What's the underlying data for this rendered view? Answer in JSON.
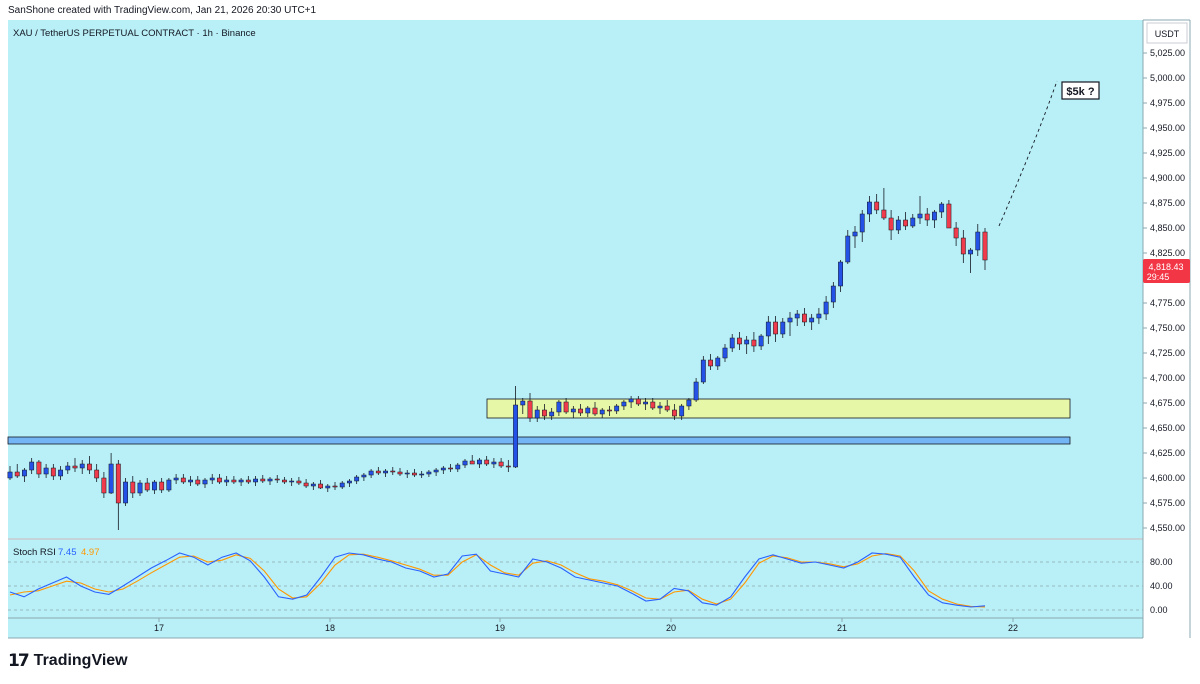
{
  "header": {
    "attribution": "SanShone created with TradingView.com, Jan 21, 2026 20:30 UTC+1"
  },
  "symbol": {
    "title": "XAU / TetherUS PERPETUAL CONTRACT · 1h · Binance"
  },
  "currency": "USDT",
  "last_price": {
    "value": "4,818.43",
    "countdown": "29:45",
    "color": "#f23645"
  },
  "annotation": {
    "label": "$5k ?"
  },
  "indicator": {
    "name": "Stoch RSI",
    "k_value": "7.45",
    "d_value": "4.97",
    "k_color": "#2962ff",
    "d_color": "#ff9800",
    "levels": [
      "80.00",
      "40.00",
      "0.00"
    ]
  },
  "footer": {
    "brand": "TradingView",
    "brand_mark": "17"
  },
  "colors": {
    "background": "#b9f0f7",
    "up": "#2451e6",
    "down": "#ef3b4b",
    "support_zone": "#74b5f5",
    "consolidation_zone": "#e6f7a8"
  },
  "chart_data": {
    "type": "candlestick",
    "price_axis": {
      "ylim": [
        4540,
        5045
      ],
      "ticks": [
        "5,025.00",
        "5,000.00",
        "4,975.00",
        "4,950.00",
        "4,925.00",
        "4,900.00",
        "4,875.00",
        "4,850.00",
        "4,825.00",
        "4,800.00",
        "4,775.00",
        "4,750.00",
        "4,725.00",
        "4,700.00",
        "4,675.00",
        "4,650.00",
        "4,625.00",
        "4,600.00",
        "4,575.00",
        "4,550.00"
      ]
    },
    "time_axis": {
      "ticks": [
        "17",
        "18",
        "19",
        "20",
        "21",
        "22"
      ],
      "bars_per_day": 24
    },
    "zones": [
      {
        "name": "support",
        "low": 4634,
        "high": 4641
      },
      {
        "name": "consolidation",
        "low": 4660,
        "high": 4679
      }
    ],
    "projection": {
      "from_price": 4852,
      "to_price": 4997
    },
    "ohlc": [
      [
        4600,
        4612,
        4598,
        4606
      ],
      [
        4606,
        4614,
        4600,
        4602
      ],
      [
        4602,
        4610,
        4596,
        4608
      ],
      [
        4608,
        4620,
        4604,
        4616
      ],
      [
        4616,
        4618,
        4600,
        4604
      ],
      [
        4604,
        4614,
        4600,
        4610
      ],
      [
        4610,
        4614,
        4598,
        4602
      ],
      [
        4602,
        4612,
        4598,
        4608
      ],
      [
        4608,
        4616,
        4604,
        4612
      ],
      [
        4612,
        4620,
        4606,
        4610
      ],
      [
        4610,
        4618,
        4604,
        4614
      ],
      [
        4614,
        4622,
        4604,
        4608
      ],
      [
        4608,
        4614,
        4596,
        4600
      ],
      [
        4600,
        4606,
        4580,
        4585
      ],
      [
        4585,
        4625,
        4584,
        4614
      ],
      [
        4614,
        4618,
        4548,
        4575
      ],
      [
        4575,
        4600,
        4572,
        4596
      ],
      [
        4596,
        4602,
        4580,
        4585
      ],
      [
        4585,
        4598,
        4582,
        4595
      ],
      [
        4595,
        4600,
        4586,
        4588
      ],
      [
        4588,
        4598,
        4584,
        4596
      ],
      [
        4596,
        4600,
        4585,
        4588
      ],
      [
        4588,
        4600,
        4586,
        4598
      ],
      [
        4598,
        4604,
        4594,
        4600
      ],
      [
        4600,
        4604,
        4594,
        4596
      ],
      [
        4596,
        4602,
        4592,
        4598
      ],
      [
        4598,
        4602,
        4592,
        4594
      ],
      [
        4594,
        4600,
        4590,
        4598
      ],
      [
        4598,
        4604,
        4594,
        4600
      ],
      [
        4600,
        4604,
        4594,
        4596
      ],
      [
        4596,
        4602,
        4592,
        4598
      ],
      [
        4598,
        4602,
        4594,
        4596
      ],
      [
        4596,
        4600,
        4592,
        4598
      ],
      [
        4598,
        4602,
        4594,
        4596
      ],
      [
        4596,
        4602,
        4592,
        4599
      ],
      [
        4599,
        4603,
        4595,
        4597
      ],
      [
        4597,
        4601,
        4593,
        4599
      ],
      [
        4599,
        4603,
        4595,
        4598
      ],
      [
        4598,
        4601,
        4594,
        4596
      ],
      [
        4596,
        4600,
        4592,
        4597
      ],
      [
        4597,
        4601,
        4593,
        4595
      ],
      [
        4595,
        4599,
        4590,
        4592
      ],
      [
        4592,
        4596,
        4588,
        4594
      ],
      [
        4594,
        4598,
        4589,
        4590
      ],
      [
        4590,
        4594,
        4586,
        4592
      ],
      [
        4592,
        4596,
        4588,
        4591
      ],
      [
        4591,
        4597,
        4589,
        4595
      ],
      [
        4595,
        4599,
        4591,
        4597
      ],
      [
        4597,
        4603,
        4594,
        4601
      ],
      [
        4601,
        4605,
        4597,
        4603
      ],
      [
        4603,
        4609,
        4600,
        4607
      ],
      [
        4607,
        4611,
        4603,
        4605
      ],
      [
        4605,
        4609,
        4601,
        4607
      ],
      [
        4607,
        4611,
        4603,
        4606
      ],
      [
        4606,
        4610,
        4602,
        4604
      ],
      [
        4604,
        4608,
        4600,
        4605
      ],
      [
        4605,
        4609,
        4601,
        4603
      ],
      [
        4603,
        4607,
        4600,
        4604
      ],
      [
        4604,
        4608,
        4601,
        4606
      ],
      [
        4606,
        4610,
        4602,
        4608
      ],
      [
        4608,
        4612,
        4604,
        4610
      ],
      [
        4610,
        4614,
        4606,
        4609
      ],
      [
        4609,
        4615,
        4606,
        4613
      ],
      [
        4613,
        4619,
        4610,
        4617
      ],
      [
        4617,
        4623,
        4614,
        4614
      ],
      [
        4614,
        4620,
        4610,
        4618
      ],
      [
        4618,
        4622,
        4612,
        4614
      ],
      [
        4614,
        4620,
        4610,
        4616
      ],
      [
        4616,
        4620,
        4610,
        4612
      ],
      [
        4612,
        4618,
        4606,
        4611
      ],
      [
        4611,
        4692,
        4610,
        4673
      ],
      [
        4673,
        4680,
        4664,
        4677
      ],
      [
        4677,
        4685,
        4656,
        4660
      ],
      [
        4660,
        4672,
        4656,
        4668
      ],
      [
        4668,
        4674,
        4658,
        4662
      ],
      [
        4662,
        4670,
        4658,
        4666
      ],
      [
        4666,
        4678,
        4662,
        4676
      ],
      [
        4676,
        4680,
        4664,
        4666
      ],
      [
        4666,
        4672,
        4660,
        4669
      ],
      [
        4669,
        4674,
        4662,
        4665
      ],
      [
        4665,
        4672,
        4661,
        4670
      ],
      [
        4670,
        4676,
        4662,
        4664
      ],
      [
        4664,
        4670,
        4660,
        4668
      ],
      [
        4668,
        4672,
        4662,
        4667
      ],
      [
        4667,
        4674,
        4664,
        4672
      ],
      [
        4672,
        4678,
        4668,
        4676
      ],
      [
        4676,
        4682,
        4670,
        4679
      ],
      [
        4679,
        4682,
        4672,
        4674
      ],
      [
        4674,
        4680,
        4668,
        4676
      ],
      [
        4676,
        4680,
        4668,
        4670
      ],
      [
        4670,
        4676,
        4664,
        4672
      ],
      [
        4672,
        4678,
        4666,
        4668
      ],
      [
        4668,
        4674,
        4658,
        4662
      ],
      [
        4662,
        4674,
        4658,
        4672
      ],
      [
        4672,
        4680,
        4668,
        4678
      ],
      [
        4678,
        4700,
        4676,
        4696
      ],
      [
        4696,
        4722,
        4694,
        4718
      ],
      [
        4718,
        4724,
        4708,
        4712
      ],
      [
        4712,
        4722,
        4708,
        4720
      ],
      [
        4720,
        4734,
        4716,
        4730
      ],
      [
        4730,
        4744,
        4726,
        4740
      ],
      [
        4740,
        4746,
        4728,
        4734
      ],
      [
        4734,
        4742,
        4724,
        4738
      ],
      [
        4738,
        4746,
        4726,
        4732
      ],
      [
        4732,
        4744,
        4728,
        4742
      ],
      [
        4742,
        4762,
        4734,
        4756
      ],
      [
        4756,
        4762,
        4736,
        4744
      ],
      [
        4744,
        4760,
        4740,
        4756
      ],
      [
        4756,
        4766,
        4742,
        4760
      ],
      [
        4760,
        4768,
        4752,
        4764
      ],
      [
        4764,
        4770,
        4752,
        4756
      ],
      [
        4756,
        4764,
        4748,
        4760
      ],
      [
        4760,
        4770,
        4754,
        4764
      ],
      [
        4764,
        4782,
        4758,
        4776
      ],
      [
        4776,
        4796,
        4770,
        4792
      ],
      [
        4792,
        4818,
        4786,
        4816
      ],
      [
        4816,
        4848,
        4814,
        4842
      ],
      [
        4842,
        4852,
        4830,
        4846
      ],
      [
        4846,
        4868,
        4836,
        4864
      ],
      [
        4864,
        4882,
        4856,
        4876
      ],
      [
        4876,
        4884,
        4864,
        4868
      ],
      [
        4868,
        4890,
        4858,
        4860
      ],
      [
        4860,
        4868,
        4838,
        4848
      ],
      [
        4848,
        4862,
        4844,
        4858
      ],
      [
        4858,
        4866,
        4848,
        4852
      ],
      [
        4852,
        4864,
        4850,
        4860
      ],
      [
        4860,
        4882,
        4854,
        4864
      ],
      [
        4864,
        4870,
        4852,
        4858
      ],
      [
        4858,
        4868,
        4850,
        4866
      ],
      [
        4866,
        4876,
        4860,
        4874
      ],
      [
        4874,
        4878,
        4850,
        4850
      ],
      [
        4850,
        4856,
        4832,
        4840
      ],
      [
        4840,
        4848,
        4815,
        4824
      ],
      [
        4824,
        4830,
        4805,
        4828
      ],
      [
        4828,
        4854,
        4822,
        4846
      ],
      [
        4846,
        4850,
        4808,
        4818
      ]
    ],
    "stoch_rsi": {
      "ylim": [
        0,
        100
      ],
      "levels": [
        80,
        40,
        0
      ],
      "k": [
        30,
        22,
        35,
        45,
        55,
        40,
        30,
        26,
        40,
        55,
        70,
        82,
        95,
        88,
        75,
        88,
        95,
        82,
        55,
        22,
        18,
        25,
        55,
        88,
        95,
        92,
        85,
        80,
        70,
        65,
        55,
        60,
        90,
        93,
        65,
        60,
        55,
        85,
        80,
        70,
        55,
        50,
        45,
        40,
        28,
        15,
        18,
        36,
        32,
        12,
        8,
        22,
        55,
        85,
        92,
        85,
        78,
        80,
        75,
        70,
        80,
        95,
        93,
        88,
        55,
        25,
        12,
        8,
        5,
        7
      ],
      "d": [
        25,
        30,
        32,
        40,
        48,
        45,
        35,
        30,
        35,
        48,
        62,
        75,
        88,
        90,
        80,
        83,
        92,
        86,
        65,
        35,
        20,
        22,
        45,
        75,
        92,
        93,
        88,
        82,
        75,
        68,
        58,
        58,
        80,
        92,
        75,
        62,
        58,
        78,
        82,
        75,
        62,
        52,
        48,
        42,
        32,
        20,
        18,
        30,
        33,
        18,
        10,
        18,
        45,
        78,
        90,
        87,
        80,
        80,
        77,
        72,
        77,
        90,
        94,
        90,
        65,
        32,
        18,
        10,
        6,
        5
      ]
    }
  }
}
